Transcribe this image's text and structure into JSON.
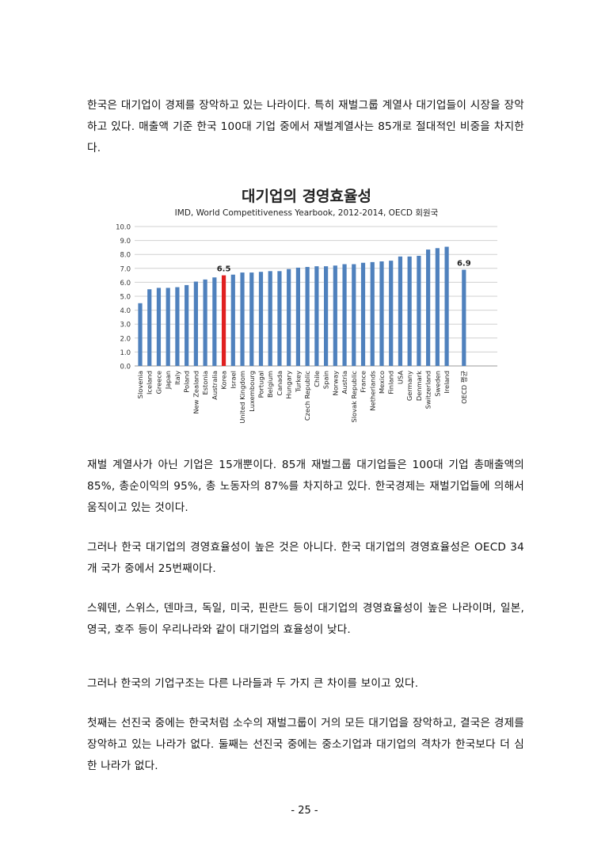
{
  "paragraphs": {
    "p1": "한국은 대기업이 경제를 장악하고 있는 나라이다. 특히 재벌그룹 계열사 대기업들이 시장을 장악하고 있다. 매출액 기준 한국 100대 기업 중에서 재벌계열사는 85개로 절대적인 비중을 차지한다.",
    "p2": "재벌 계열사가 아닌 기업은 15개뿐이다. 85개 재벌그룹 대기업들은 100대 기업 총매출액의 85%, 총순이익의 95%, 총 노동자의 87%를 차지하고 있다. 한국경제는 재벌기업들에 의해서 움직이고 있는 것이다.",
    "p3": "그러나 한국 대기업의 경영효율성이 높은 것은 아니다. 한국 대기업의 경영효율성은 OECD 34개 국가 중에서 25번째이다.",
    "p4": "스웨덴, 스위스, 덴마크, 독일, 미국, 핀란드 등이 대기업의 경영효율성이 높은 나라이며, 일본, 영국, 호주 등이 우리나라와 같이 대기업의 효율성이 낮다.",
    "p5": "그러나 한국의 기업구조는 다른 나라들과 두 가지 큰 차이를 보이고 있다.",
    "p6": "첫째는 선진국 중에는 한국처럼 소수의 재벌그룹이 거의 모든 대기업을 장악하고, 결국은 경제를 장악하고 있는 나라가 없다. 둘째는 선진국 중에는 중소기업과 대기업의 격차가 한국보다 더 심한 나라가 없다."
  },
  "page_number": "- 25 -",
  "chart_data": {
    "type": "bar",
    "title": "대기업의 경영효율성",
    "subtitle": "IMD, World Competitiveness Yearbook, 2012-2014, OECD 회원국",
    "xlabel": "",
    "ylabel": "",
    "ylim": [
      0,
      10
    ],
    "yticks": [
      "0.0",
      "1.0",
      "2.0",
      "3.0",
      "4.0",
      "5.0",
      "6.0",
      "7.0",
      "8.0",
      "9.0",
      "10.0"
    ],
    "grid": true,
    "categories": [
      "Slovenia",
      "Iceland",
      "Greece",
      "Japan",
      "Italy",
      "Poland",
      "New Zealand",
      "Estonia",
      "Australia",
      "Korea",
      "Israel",
      "United Kingdom",
      "Luxembourg",
      "Portugal",
      "Belgium",
      "Canada",
      "Hungary",
      "Turkey",
      "Czech Republic",
      "Chile",
      "Spain",
      "Norway",
      "Austria",
      "Slovak Republic",
      "France",
      "Netherlands",
      "Mexico",
      "Finland",
      "USA",
      "Germany",
      "Denmark",
      "Switzerland",
      "Sweden",
      "Ireland",
      "OECD 평균"
    ],
    "values": [
      4.5,
      5.5,
      5.6,
      5.6,
      5.65,
      5.8,
      6.05,
      6.2,
      6.35,
      6.5,
      6.55,
      6.7,
      6.7,
      6.75,
      6.8,
      6.8,
      6.95,
      7.05,
      7.1,
      7.15,
      7.15,
      7.2,
      7.3,
      7.3,
      7.4,
      7.45,
      7.5,
      7.55,
      7.85,
      7.85,
      7.9,
      8.35,
      8.45,
      8.55,
      6.9
    ],
    "highlight_category": "Korea",
    "data_labels": [
      {
        "category": "Korea",
        "label": "6.5"
      },
      {
        "category": "OECD 평균",
        "label": "6.9"
      }
    ],
    "colors": {
      "bar": "#4f81bd",
      "highlight": "#e02020",
      "grid": "#d0d0d0"
    }
  }
}
